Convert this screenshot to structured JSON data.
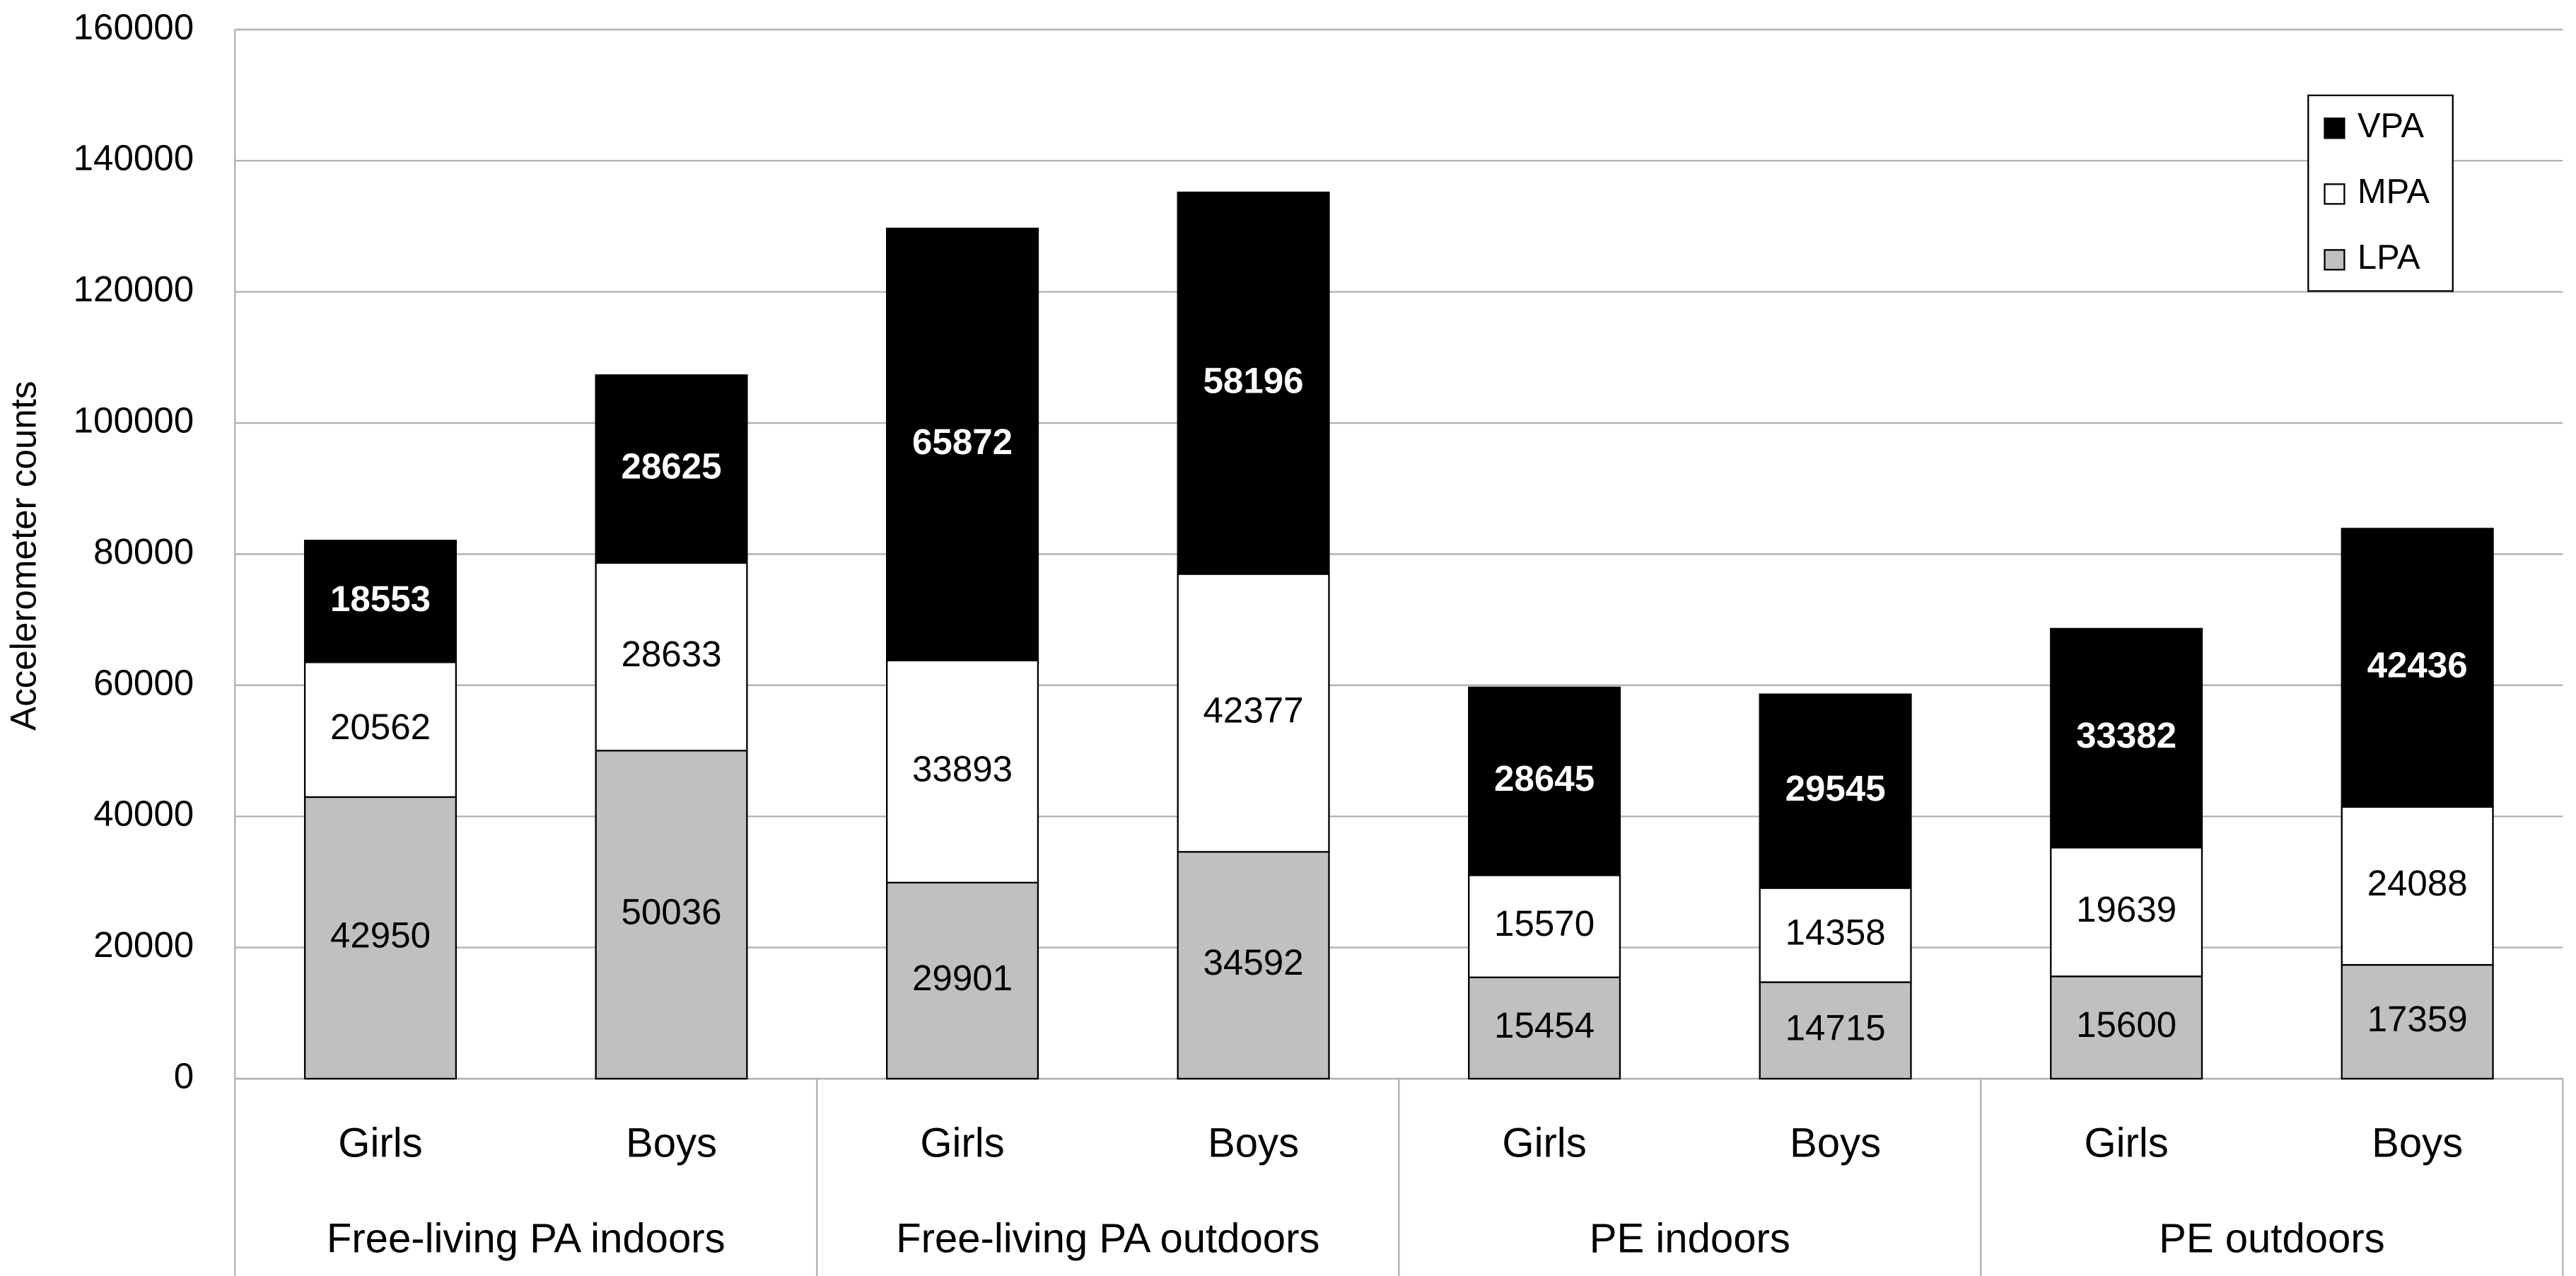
{
  "chart_data": {
    "type": "stacked-bar",
    "y_label": "Accelerometer counts",
    "categories": [
      "Girls",
      "Boys",
      "Girls",
      "Boys",
      "Girls",
      "Boys",
      "Girls",
      "Boys"
    ],
    "groups": [
      "Free-living PA indoors",
      "Free-living PA outdoors",
      "PE indoors",
      "PE outdoors"
    ],
    "series": [
      {
        "name": "LPA",
        "color": "#c0c0c0",
        "values": [
          42950,
          50036,
          29901,
          34592,
          15454,
          14715,
          15600,
          17359
        ]
      },
      {
        "name": "MPA",
        "color": "#ffffff",
        "values": [
          20562,
          28633,
          33893,
          42377,
          15570,
          14358,
          19639,
          24088
        ]
      },
      {
        "name": "VPA",
        "color": "#000000",
        "values": [
          18553,
          28625,
          65872,
          58196,
          28645,
          29545,
          33382,
          42436
        ]
      }
    ],
    "ylim": [
      0,
      160000
    ],
    "yticks": [
      0,
      20000,
      40000,
      60000,
      80000,
      100000,
      120000,
      140000,
      160000
    ],
    "grid": true,
    "legend": "upper right"
  }
}
